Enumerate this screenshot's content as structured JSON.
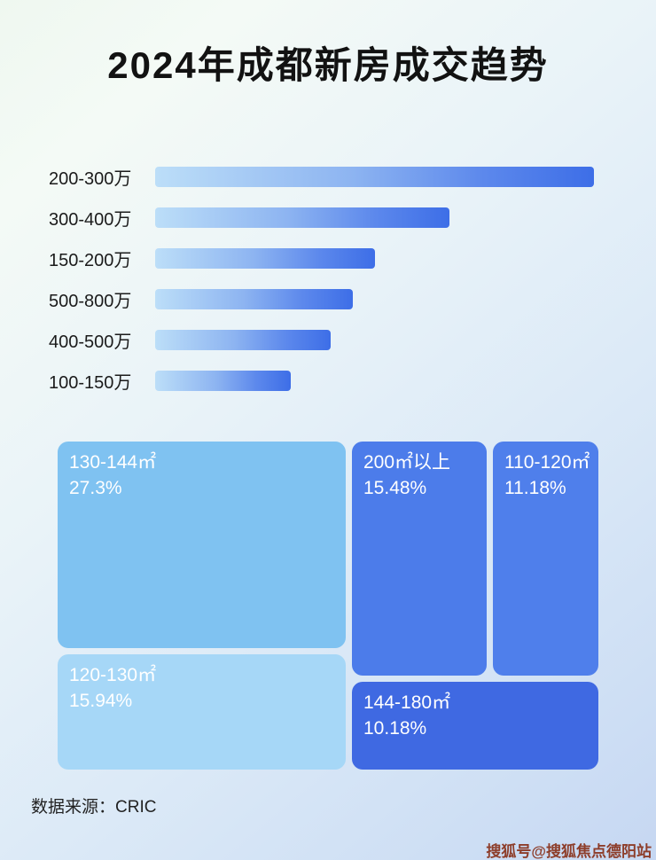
{
  "title": "2024年成都新房成交趋势",
  "chart_data": [
    {
      "type": "bar",
      "orientation": "horizontal",
      "categories": [
        "200-300万",
        "300-400万",
        "150-200万",
        "500-800万",
        "400-500万",
        "100-150万"
      ],
      "values": [
        100,
        67,
        50,
        45,
        40,
        31
      ],
      "value_note": "relative length, percent of longest bar (no axis labels shown)",
      "xlabel": "",
      "ylabel": "",
      "bar_gradient": [
        "#bcdef8",
        "#3d6ee7"
      ]
    },
    {
      "type": "treemap",
      "items": [
        {
          "label": "130-144㎡",
          "value": 27.3,
          "display": "27.3%",
          "color": "#7fc2f1"
        },
        {
          "label": "200㎡以上",
          "value": 15.48,
          "display": "15.48%",
          "color": "#4c7cea"
        },
        {
          "label": "110-120㎡",
          "value": 11.18,
          "display": "11.18%",
          "color": "#4f7feb"
        },
        {
          "label": "120-130㎡",
          "value": 15.94,
          "display": "15.94%",
          "color": "#a6d7f7"
        },
        {
          "label": "144-180㎡",
          "value": 10.18,
          "display": "10.18%",
          "color": "#3f69e2"
        }
      ]
    }
  ],
  "footer": {
    "source_label": "数据来源：CRIC"
  },
  "watermark": {
    "text": "搜狐号@搜狐焦点德阳站"
  },
  "colors": {
    "title_text": "#121212",
    "bar_light": "#bcdef8",
    "bar_dark": "#3d6ee7",
    "watermark_text": "#8d3d2a"
  }
}
